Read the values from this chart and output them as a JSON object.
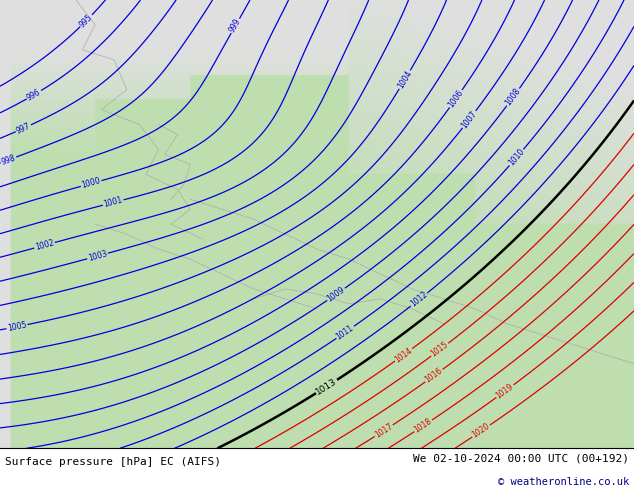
{
  "title_left": "Surface pressure [hPa] EC (AIFS)",
  "title_right": "We 02-10-2024 00:00 UTC (00+192)",
  "copyright": "© weatheronline.co.uk",
  "blue_color": "#0000dd",
  "red_color": "#dd0000",
  "black_color": "#000000",
  "footer_text_color": "#000000",
  "copyright_color": "#000080",
  "figsize": [
    6.34,
    4.9
  ],
  "dpi": 100,
  "blue_levels": [
    995,
    996,
    997,
    998,
    999,
    1000,
    1001,
    1002,
    1003,
    1004,
    1005,
    1006,
    1007,
    1008,
    1009,
    1010,
    1011,
    1012
  ],
  "black_levels": [
    1013
  ],
  "red_levels": [
    1014,
    1015,
    1016,
    1017,
    1018,
    1019,
    1020
  ]
}
